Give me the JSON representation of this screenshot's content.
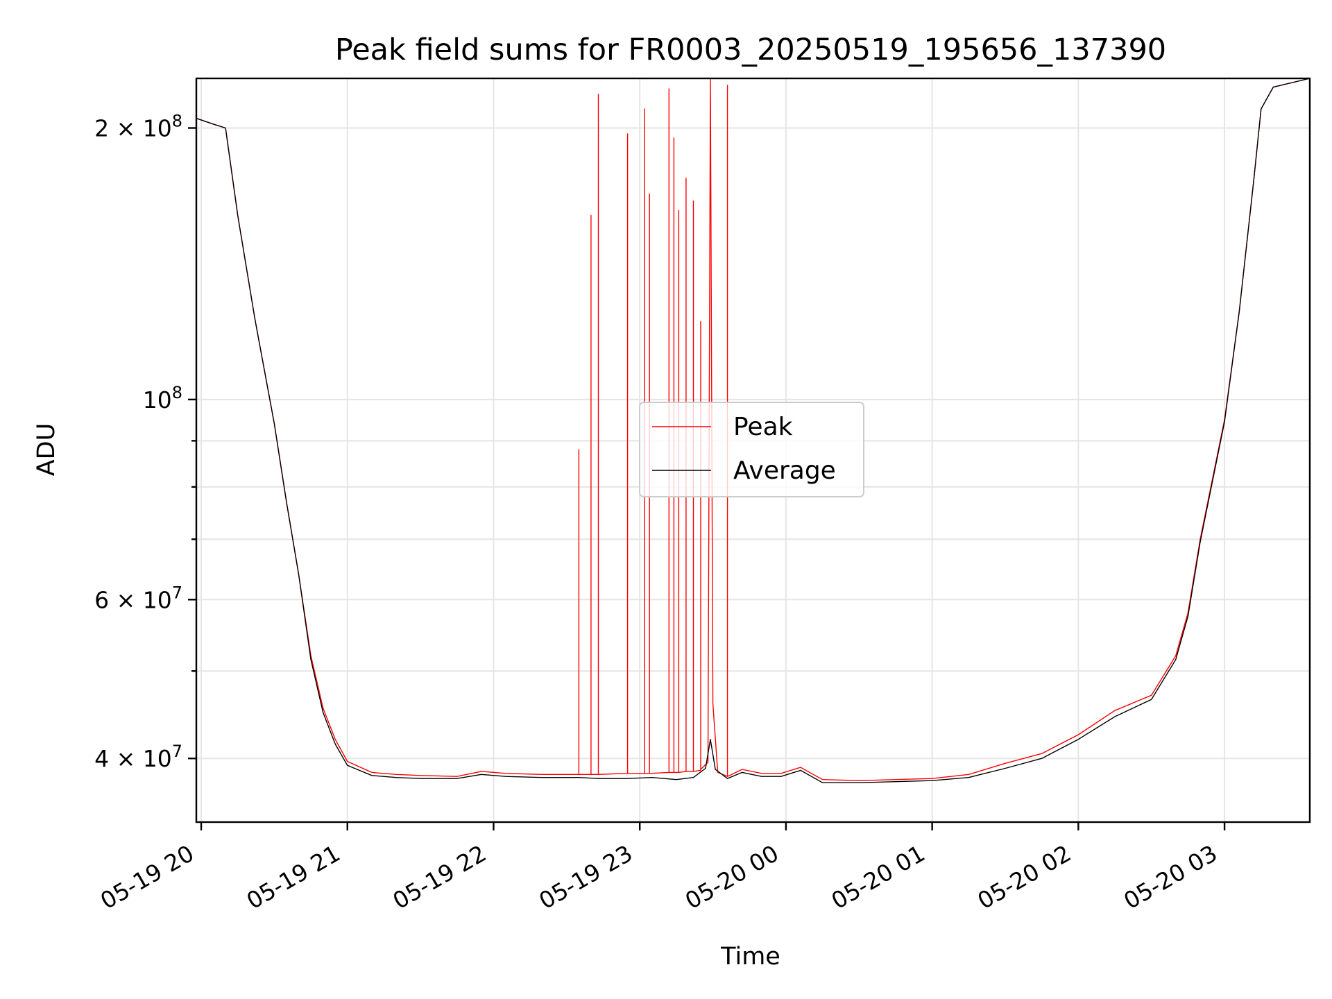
{
  "chart_data": {
    "type": "line",
    "title": "Peak field sums for FR0003_20250519_195656_137390",
    "xlabel": "Time",
    "ylabel": "ADU",
    "yscale": "log",
    "ylim": [
      34000000,
      227000000
    ],
    "xlim": [
      "2025-05-19 19:58",
      "2025-05-20 03:35"
    ],
    "x_ticks": [
      {
        "t": "2025-05-19 20:00",
        "label": "05-19 20"
      },
      {
        "t": "2025-05-19 21:00",
        "label": "05-19 21"
      },
      {
        "t": "2025-05-19 22:00",
        "label": "05-19 22"
      },
      {
        "t": "2025-05-19 23:00",
        "label": "05-19 23"
      },
      {
        "t": "2025-05-20 00:00",
        "label": "05-20 00"
      },
      {
        "t": "2025-05-20 01:00",
        "label": "05-20 01"
      },
      {
        "t": "2025-05-20 02:00",
        "label": "05-20 02"
      },
      {
        "t": "2025-05-20 03:00",
        "label": "05-20 03"
      }
    ],
    "y_major_ticks": [
      {
        "value": 40000000,
        "mant": "4",
        "exp": "7"
      },
      {
        "value": 60000000,
        "mant": "6",
        "exp": "7"
      },
      {
        "value": 100000000,
        "mant": "",
        "exp": "8"
      },
      {
        "value": 200000000,
        "mant": "2",
        "exp": "8"
      }
    ],
    "y_minor_ticks": [
      50000000,
      70000000,
      80000000,
      90000000
    ],
    "grid": true,
    "legend": {
      "placement": "center"
    },
    "series": [
      {
        "name": "Peak",
        "color": "#ff0000",
        "points": [
          [
            "2025-05-19 19:58",
            205000000
          ],
          [
            "2025-05-19 20:05",
            202000000
          ],
          [
            "2025-05-19 20:10",
            200000000
          ],
          [
            "2025-05-19 20:15",
            160000000
          ],
          [
            "2025-05-19 20:22",
            123000000
          ],
          [
            "2025-05-19 20:30",
            94000000
          ],
          [
            "2025-05-19 20:35",
            77000000
          ],
          [
            "2025-05-19 20:40",
            64000000
          ],
          [
            "2025-05-19 20:45",
            52000000
          ],
          [
            "2025-05-19 20:50",
            45500000
          ],
          [
            "2025-05-19 20:55",
            42000000
          ],
          [
            "2025-05-19 21:00",
            39700000
          ],
          [
            "2025-05-19 21:10",
            38600000
          ],
          [
            "2025-05-19 21:20",
            38400000
          ],
          [
            "2025-05-19 21:30",
            38300000
          ],
          [
            "2025-05-19 21:45",
            38200000
          ],
          [
            "2025-05-19 21:55",
            38700000
          ],
          [
            "2025-05-19 22:05",
            38500000
          ],
          [
            "2025-05-19 22:20",
            38400000
          ],
          [
            "2025-05-19 22:35",
            38400000
          ],
          [
            "2025-05-19 22:35",
            38400000
          ],
          [
            "2025-05-19 22:35",
            88000000
          ],
          [
            "2025-05-19 22:35",
            38400000
          ],
          [
            "2025-05-19 22:40",
            38400000
          ],
          [
            "2025-05-19 22:40",
            160000000
          ],
          [
            "2025-05-19 22:40",
            38400000
          ],
          [
            "2025-05-19 22:43",
            38400000
          ],
          [
            "2025-05-19 22:43",
            218000000
          ],
          [
            "2025-05-19 22:43",
            38400000
          ],
          [
            "2025-05-19 22:55",
            38500000
          ],
          [
            "2025-05-19 22:55",
            197000000
          ],
          [
            "2025-05-19 22:55",
            38500000
          ],
          [
            "2025-05-19 23:02",
            38500000
          ],
          [
            "2025-05-19 23:02",
            210000000
          ],
          [
            "2025-05-19 23:02",
            38500000
          ],
          [
            "2025-05-19 23:04",
            38500000
          ],
          [
            "2025-05-19 23:04",
            169000000
          ],
          [
            "2025-05-19 23:04",
            38500000
          ],
          [
            "2025-05-19 23:12",
            38600000
          ],
          [
            "2025-05-19 23:12",
            221000000
          ],
          [
            "2025-05-19 23:12",
            38600000
          ],
          [
            "2025-05-19 23:14",
            38600000
          ],
          [
            "2025-05-19 23:14",
            195000000
          ],
          [
            "2025-05-19 23:14",
            38600000
          ],
          [
            "2025-05-19 23:16",
            38600000
          ],
          [
            "2025-05-19 23:16",
            162000000
          ],
          [
            "2025-05-19 23:16",
            38600000
          ],
          [
            "2025-05-19 23:19",
            38700000
          ],
          [
            "2025-05-19 23:19",
            176000000
          ],
          [
            "2025-05-19 23:19",
            38700000
          ],
          [
            "2025-05-19 23:22",
            38700000
          ],
          [
            "2025-05-19 23:22",
            166000000
          ],
          [
            "2025-05-19 23:22",
            38700000
          ],
          [
            "2025-05-19 23:25",
            38800000
          ],
          [
            "2025-05-19 23:25",
            122000000
          ],
          [
            "2025-05-19 23:25",
            38900000
          ],
          [
            "2025-05-19 23:28",
            39600000
          ],
          [
            "2025-05-19 23:29",
            227000000
          ],
          [
            "2025-05-19 23:30",
            46000000
          ],
          [
            "2025-05-19 23:32",
            38600000
          ],
          [
            "2025-05-19 23:36",
            38200000
          ],
          [
            "2025-05-19 23:36",
            223000000
          ],
          [
            "2025-05-19 23:36",
            38200000
          ],
          [
            "2025-05-19 23:42",
            38900000
          ],
          [
            "2025-05-19 23:50",
            38500000
          ],
          [
            "2025-05-19 23:58",
            38500000
          ],
          [
            "2025-05-20 00:06",
            39100000
          ],
          [
            "2025-05-20 00:15",
            37900000
          ],
          [
            "2025-05-20 00:30",
            37800000
          ],
          [
            "2025-05-20 00:45",
            37900000
          ],
          [
            "2025-05-20 01:00",
            38000000
          ],
          [
            "2025-05-20 01:15",
            38400000
          ],
          [
            "2025-05-20 01:30",
            39500000
          ],
          [
            "2025-05-20 01:45",
            40500000
          ],
          [
            "2025-05-20 02:00",
            42500000
          ],
          [
            "2025-05-20 02:15",
            45200000
          ],
          [
            "2025-05-20 02:30",
            47000000
          ],
          [
            "2025-05-20 02:40",
            52000000
          ],
          [
            "2025-05-20 02:45",
            58000000
          ],
          [
            "2025-05-20 02:50",
            70000000
          ],
          [
            "2025-05-20 03:00",
            95000000
          ],
          [
            "2025-05-20 03:06",
            125000000
          ],
          [
            "2025-05-20 03:12",
            175000000
          ],
          [
            "2025-05-20 03:15",
            210000000
          ],
          [
            "2025-05-20 03:20",
            222000000
          ],
          [
            "2025-05-20 03:35",
            227000000
          ]
        ]
      },
      {
        "name": "Average",
        "color": "#000000",
        "points": [
          [
            "2025-05-19 19:58",
            205000000
          ],
          [
            "2025-05-19 20:05",
            202000000
          ],
          [
            "2025-05-19 20:10",
            200000000
          ],
          [
            "2025-05-19 20:15",
            160000000
          ],
          [
            "2025-05-19 20:22",
            123000000
          ],
          [
            "2025-05-19 20:30",
            94000000
          ],
          [
            "2025-05-19 20:35",
            77000000
          ],
          [
            "2025-05-19 20:40",
            64000000
          ],
          [
            "2025-05-19 20:45",
            51500000
          ],
          [
            "2025-05-19 20:50",
            45000000
          ],
          [
            "2025-05-19 20:55",
            41500000
          ],
          [
            "2025-05-19 21:00",
            39300000
          ],
          [
            "2025-05-19 21:10",
            38300000
          ],
          [
            "2025-05-19 21:20",
            38100000
          ],
          [
            "2025-05-19 21:30",
            38000000
          ],
          [
            "2025-05-19 21:45",
            38000000
          ],
          [
            "2025-05-19 21:55",
            38400000
          ],
          [
            "2025-05-19 22:05",
            38200000
          ],
          [
            "2025-05-19 22:20",
            38100000
          ],
          [
            "2025-05-19 22:35",
            38100000
          ],
          [
            "2025-05-19 22:43",
            38000000
          ],
          [
            "2025-05-19 22:55",
            38000000
          ],
          [
            "2025-05-19 23:05",
            38100000
          ],
          [
            "2025-05-19 23:15",
            37900000
          ],
          [
            "2025-05-19 23:22",
            38100000
          ],
          [
            "2025-05-19 23:27",
            39000000
          ],
          [
            "2025-05-19 23:29",
            42000000
          ],
          [
            "2025-05-19 23:31",
            38900000
          ],
          [
            "2025-05-19 23:36",
            38000000
          ],
          [
            "2025-05-19 23:42",
            38600000
          ],
          [
            "2025-05-19 23:50",
            38200000
          ],
          [
            "2025-05-19 23:58",
            38200000
          ],
          [
            "2025-05-20 00:06",
            38800000
          ],
          [
            "2025-05-20 00:15",
            37600000
          ],
          [
            "2025-05-20 00:30",
            37600000
          ],
          [
            "2025-05-20 00:45",
            37700000
          ],
          [
            "2025-05-20 01:00",
            37800000
          ],
          [
            "2025-05-20 01:15",
            38100000
          ],
          [
            "2025-05-20 01:30",
            39000000
          ],
          [
            "2025-05-20 01:45",
            40000000
          ],
          [
            "2025-05-20 02:00",
            42000000
          ],
          [
            "2025-05-20 02:15",
            44500000
          ],
          [
            "2025-05-20 02:30",
            46500000
          ],
          [
            "2025-05-20 02:40",
            51500000
          ],
          [
            "2025-05-20 02:45",
            57500000
          ],
          [
            "2025-05-20 02:50",
            69500000
          ],
          [
            "2025-05-20 03:00",
            94500000
          ],
          [
            "2025-05-20 03:06",
            125000000
          ],
          [
            "2025-05-20 03:12",
            175000000
          ],
          [
            "2025-05-20 03:15",
            210000000
          ],
          [
            "2025-05-20 03:20",
            222000000
          ],
          [
            "2025-05-20 03:35",
            227000000
          ]
        ]
      }
    ]
  }
}
